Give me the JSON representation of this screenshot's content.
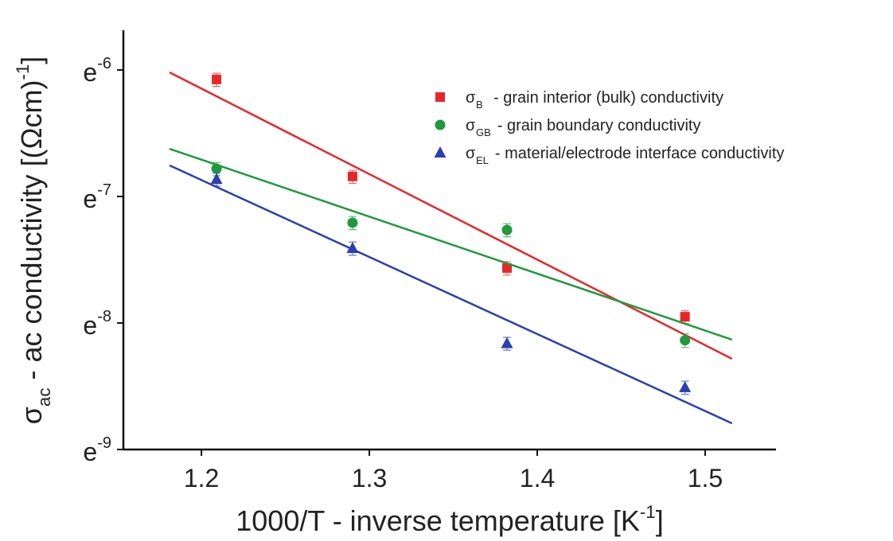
{
  "chart_data": {
    "type": "scatter",
    "xlabel": [
      {
        "text": "1000/T - inverse temperature  [K"
      },
      {
        "text": "-1",
        "shift": "sup"
      },
      {
        "text": "]"
      }
    ],
    "ylabel": [
      {
        "text": "σ"
      },
      {
        "text": "ac",
        "shift": "sub"
      },
      {
        "text": " - ac conductivity  [(Ωcm)"
      },
      {
        "text": "-1",
        "shift": "sup"
      },
      {
        "text": "]"
      }
    ],
    "xlim": [
      1.1535,
      1.5422
    ],
    "xticks": [
      1.2,
      1.3,
      1.4,
      1.5
    ],
    "ylim": [
      1e-09,
      2.06e-06
    ],
    "yscale": "log",
    "yticks": [
      {
        "value": 1e-06,
        "label": "e-6"
      },
      {
        "value": 1e-07,
        "label": "e-7"
      },
      {
        "value": 1e-08,
        "label": "e-8"
      },
      {
        "value": 1e-09,
        "label": "e-9"
      }
    ],
    "x": [
      1.209,
      1.29,
      1.382,
      1.488
    ],
    "series": [
      {
        "symbol": "σ",
        "subscript": "B",
        "name": "- grain interior (bulk) conductivity",
        "color": "#e8262a",
        "marker": "square",
        "values": [
          8.41e-07,
          1.44e-07,
          2.72e-08,
          1.12e-08
        ],
        "errors": [
          1e-07,
          1.7e-08,
          3.3e-09,
          1.3e-09
        ],
        "fit_x": [
          1.181,
          1.516
        ],
        "fit_values": [
          9.57e-07,
          5.21e-09
        ]
      },
      {
        "symbol": "σ",
        "subscript": "GB",
        "name": "- grain boundary conductivity",
        "color": "#1f9a3c",
        "marker": "circle",
        "values": [
          1.66e-07,
          6.2e-08,
          5.44e-08,
          7.3e-09
        ],
        "errors": [
          2e-08,
          7.4e-09,
          6.5e-09,
          9e-10
        ],
        "fit_x": [
          1.181,
          1.516
        ],
        "fit_values": [
          2.38e-07,
          7.38e-09
        ]
      },
      {
        "symbol": "σ",
        "subscript": "EL",
        "name": "- material/electrode interface conductivity",
        "color": "#2b3fb0",
        "marker": "triangle",
        "values": [
          1.37e-07,
          3.9e-08,
          6.9e-09,
          3.1e-09
        ],
        "errors": [
          1.6e-08,
          4.7e-09,
          8e-10,
          3.7e-10
        ],
        "fit_x": [
          1.181,
          1.516
        ],
        "fit_values": [
          1.76e-07,
          1.61e-09
        ]
      }
    ]
  }
}
